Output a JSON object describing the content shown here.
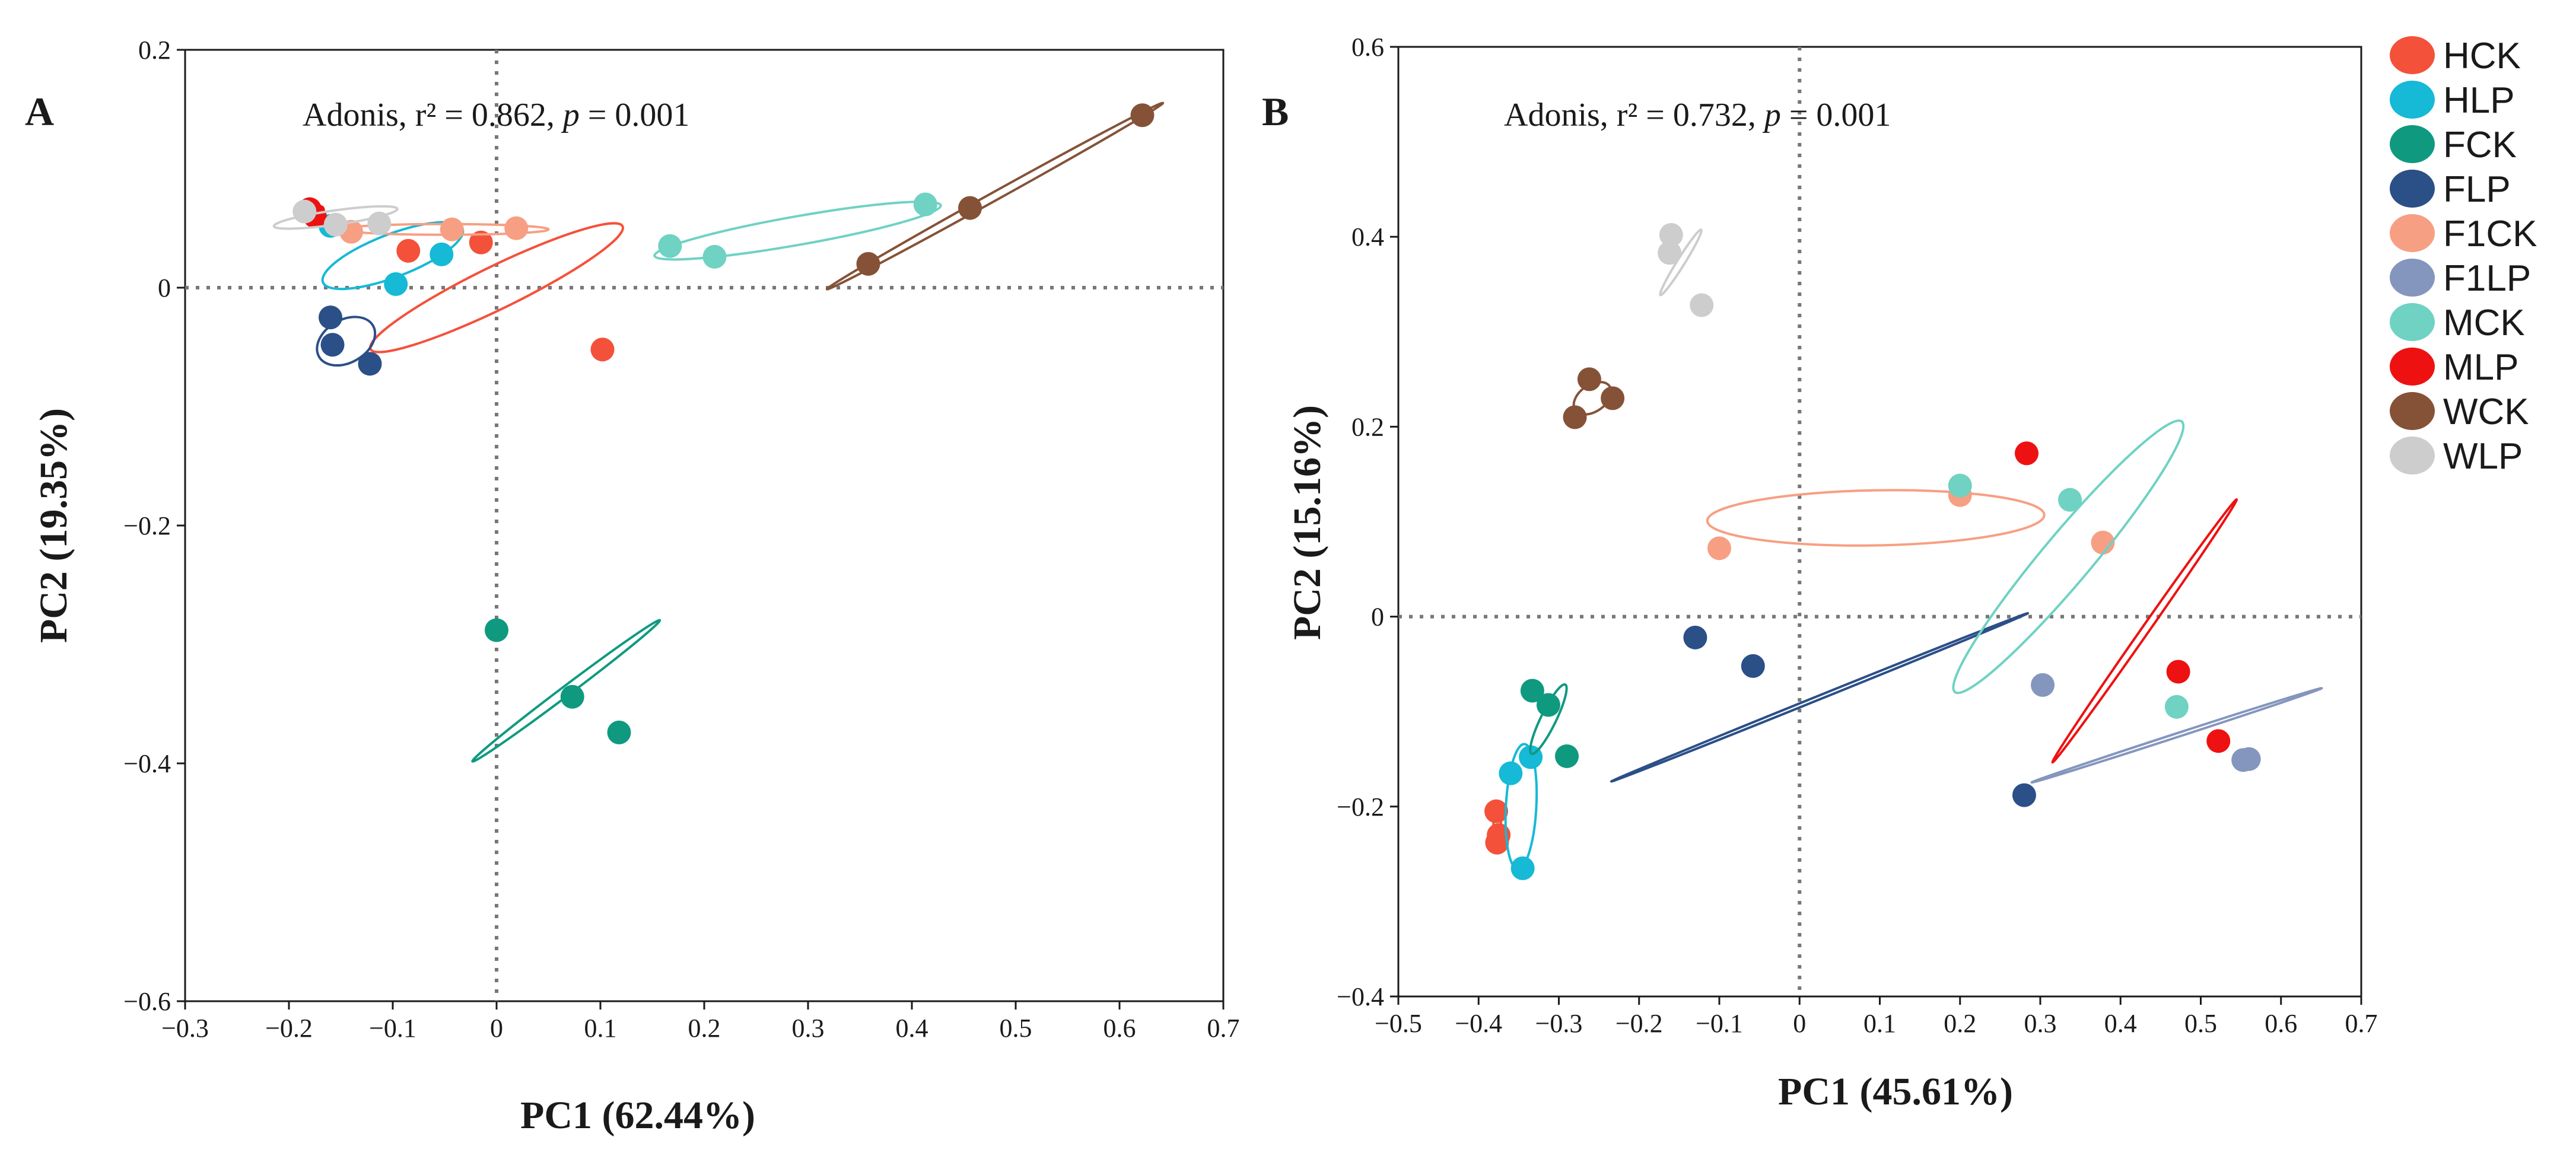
{
  "colors": {
    "HCK": "#f4513a",
    "HLP": "#16b9d6",
    "FCK": "#0f9a80",
    "FLP": "#2b4f87",
    "F1CK": "#f79f83",
    "F1LP": "#8496bd",
    "MCK": "#6fd2c3",
    "MLP": "#ee1111",
    "WCK": "#855238",
    "WLP": "#cdcdcd"
  },
  "legend": {
    "items": [
      "HCK",
      "HLP",
      "FCK",
      "FLP",
      "F1CK",
      "F1LP",
      "MCK",
      "MLP",
      "WCK",
      "WLP"
    ]
  },
  "chart_data": [
    {
      "type": "scatter",
      "panel": "A",
      "xlabel": "PC1 (62.44%)",
      "ylabel": "PC2 (19.35%)",
      "xlim": [
        -0.3,
        0.7
      ],
      "ylim": [
        -0.6,
        0.2
      ],
      "xticks": [
        -0.3,
        -0.2,
        -0.1,
        0,
        0.1,
        0.2,
        0.3,
        0.4,
        0.5,
        0.6,
        0.7
      ],
      "xtick_labels": [
        "−0.3",
        "−0.2",
        "−0.1",
        "0",
        "0.1",
        "0.2",
        "0.3",
        "0.4",
        "0.5",
        "0.6",
        "0.7"
      ],
      "yticks": [
        0.2,
        0,
        -0.2,
        -0.4,
        -0.6
      ],
      "ytick_labels": [
        "0.2",
        "0",
        "−0.2",
        "−0.4",
        "−0.6"
      ],
      "annotation": {
        "prefix": "Adonis, r² = 0.862, ",
        "p_label": "p",
        "suffix": " = 0.001"
      },
      "reference_lines": {
        "x": 0,
        "y": 0,
        "style": "dotted"
      },
      "series": [
        {
          "name": "HCK",
          "points": [
            [
              -0.085,
              0.031
            ],
            [
              -0.015,
              0.038
            ],
            [
              0.102,
              -0.052
            ]
          ],
          "ellipse": {
            "cx": 0.0,
            "cy": 0.0,
            "rx": 0.135,
            "ry": 0.018,
            "angle": -26
          }
        },
        {
          "name": "HLP",
          "points": [
            [
              -0.097,
              0.003
            ],
            [
              -0.053,
              0.028
            ],
            [
              -0.16,
              0.052
            ]
          ],
          "ellipse": {
            "cx": -0.1,
            "cy": 0.027,
            "rx": 0.072,
            "ry": 0.018,
            "angle": -21
          }
        },
        {
          "name": "FCK",
          "points": [
            [
              0.0,
              -0.288
            ],
            [
              0.073,
              -0.344
            ],
            [
              0.118,
              -0.374
            ]
          ],
          "ellipse": {
            "cx": 0.067,
            "cy": -0.339,
            "rx": 0.113,
            "ry": 0.004,
            "angle": -37
          }
        },
        {
          "name": "FLP",
          "points": [
            [
              -0.16,
              -0.025
            ],
            [
              -0.158,
              -0.048
            ],
            [
              -0.122,
              -0.064
            ]
          ],
          "ellipse": {
            "cx": -0.145,
            "cy": -0.045,
            "rx": 0.03,
            "ry": 0.018,
            "angle": -30
          }
        },
        {
          "name": "F1CK",
          "points": [
            [
              -0.14,
              0.047
            ],
            [
              -0.043,
              0.049
            ],
            [
              0.019,
              0.05
            ]
          ],
          "ellipse": {
            "cx": -0.05,
            "cy": 0.049,
            "rx": 0.1,
            "ry": 0.0045,
            "angle": 0
          }
        },
        {
          "name": "MCK",
          "points": [
            [
              0.167,
              0.035
            ],
            [
              0.21,
              0.026
            ],
            [
              0.413,
              0.07
            ]
          ],
          "ellipse": {
            "cx": 0.29,
            "cy": 0.048,
            "rx": 0.14,
            "ry": 0.012,
            "angle": -10
          }
        },
        {
          "name": "MLP",
          "points": [
            [
              -0.18,
              0.066
            ],
            [
              -0.175,
              0.06
            ]
          ],
          "ellipse": {
            "cx": -0.178,
            "cy": 0.063,
            "rx": 0.012,
            "ry": 0.005,
            "angle": -20
          }
        },
        {
          "name": "WCK",
          "points": [
            [
              0.358,
              0.02
            ],
            [
              0.456,
              0.067
            ],
            [
              0.622,
              0.145
            ]
          ],
          "ellipse": {
            "cx": 0.48,
            "cy": 0.077,
            "rx": 0.185,
            "ry": 0.0035,
            "angle": -29
          }
        },
        {
          "name": "WLP",
          "points": [
            [
              -0.185,
              0.064
            ],
            [
              -0.155,
              0.053
            ],
            [
              -0.113,
              0.054
            ]
          ],
          "ellipse": {
            "cx": -0.155,
            "cy": 0.059,
            "rx": 0.06,
            "ry": 0.006,
            "angle": -8
          }
        }
      ]
    },
    {
      "type": "scatter",
      "panel": "B",
      "xlabel": "PC1 (45.61%)",
      "ylabel": "PC2 (15.16%)",
      "xlim": [
        -0.5,
        0.7
      ],
      "ylim": [
        -0.4,
        0.6
      ],
      "xticks": [
        -0.5,
        -0.4,
        -0.3,
        -0.2,
        -0.1,
        0,
        0.1,
        0.2,
        0.3,
        0.4,
        0.5,
        0.6,
        0.7
      ],
      "xtick_labels": [
        "−0.5",
        "−0.4",
        "−0.3",
        "−0.2",
        "−0.1",
        "0",
        "0.1",
        "0.2",
        "0.3",
        "0.4",
        "0.5",
        "0.6",
        "0.7"
      ],
      "yticks": [
        0.6,
        0.4,
        0.2,
        0,
        -0.2,
        -0.4
      ],
      "ytick_labels": [
        "0.6",
        "0.4",
        "0.2",
        "0",
        "−0.2",
        "−0.4"
      ],
      "annotation": {
        "prefix": "Adonis, r² = 0.732, ",
        "p_label": "p",
        "suffix": " = 0.001"
      },
      "reference_lines": {
        "x": 0,
        "y": 0,
        "style": "dotted"
      },
      "series": [
        {
          "name": "HCK",
          "points": [
            [
              -0.378,
              -0.205
            ],
            [
              -0.375,
              -0.23
            ],
            [
              -0.377,
              -0.238
            ]
          ],
          "ellipse": {
            "cx": -0.377,
            "cy": -0.222,
            "rx": 0.022,
            "ry": 0.004,
            "angle": -88
          }
        },
        {
          "name": "HLP",
          "points": [
            [
              -0.36,
              -0.165
            ],
            [
              -0.335,
              -0.148
            ],
            [
              -0.345,
              -0.265
            ]
          ],
          "ellipse": {
            "cx": -0.347,
            "cy": -0.2,
            "rx": 0.078,
            "ry": 0.016,
            "angle": -87
          }
        },
        {
          "name": "FCK",
          "points": [
            [
              -0.333,
              -0.078
            ],
            [
              -0.313,
              -0.093
            ],
            [
              -0.29,
              -0.147
            ]
          ],
          "ellipse": {
            "cx": -0.313,
            "cy": -0.108,
            "rx": 0.048,
            "ry": 0.008,
            "angle": -64
          }
        },
        {
          "name": "FLP",
          "points": [
            [
              -0.13,
              -0.022
            ],
            [
              -0.058,
              -0.052
            ],
            [
              0.28,
              -0.188
            ]
          ],
          "ellipse": {
            "cx": 0.025,
            "cy": -0.085,
            "rx": 0.28,
            "ry": 0.002,
            "angle": -22
          }
        },
        {
          "name": "F1CK",
          "points": [
            [
              -0.1,
              0.072
            ],
            [
              0.2,
              0.128
            ],
            [
              0.378,
              0.078
            ]
          ],
          "ellipse": {
            "cx": 0.095,
            "cy": 0.104,
            "rx": 0.21,
            "ry": 0.029,
            "angle": -1
          }
        },
        {
          "name": "F1LP",
          "points": [
            [
              0.303,
              -0.072
            ],
            [
              0.553,
              -0.151
            ],
            [
              0.56,
              -0.15
            ]
          ],
          "ellipse": {
            "cx": 0.47,
            "cy": -0.125,
            "rx": 0.19,
            "ry": 0.002,
            "angle": -18
          }
        },
        {
          "name": "MCK",
          "points": [
            [
              0.2,
              0.138
            ],
            [
              0.337,
              0.123
            ],
            [
              0.47,
              -0.095
            ]
          ],
          "ellipse": {
            "cx": 0.335,
            "cy": 0.063,
            "rx": 0.22,
            "ry": 0.026,
            "angle": -50
          }
        },
        {
          "name": "MLP",
          "points": [
            [
              0.283,
              0.172
            ],
            [
              0.472,
              -0.058
            ],
            [
              0.522,
              -0.131
            ]
          ],
          "ellipse": {
            "cx": 0.43,
            "cy": -0.015,
            "rx": 0.2,
            "ry": 0.004,
            "angle": -55
          }
        },
        {
          "name": "WCK",
          "points": [
            [
              -0.28,
              0.21
            ],
            [
              -0.262,
              0.25
            ],
            [
              -0.233,
              0.23
            ]
          ],
          "ellipse": {
            "cx": -0.258,
            "cy": 0.23,
            "rx": 0.026,
            "ry": 0.014,
            "angle": -35
          }
        },
        {
          "name": "WLP",
          "points": [
            [
              -0.162,
              0.383
            ],
            [
              -0.16,
              0.402
            ],
            [
              -0.122,
              0.328
            ]
          ],
          "ellipse": {
            "cx": -0.148,
            "cy": 0.373,
            "rx": 0.048,
            "ry": 0.004,
            "angle": -58
          }
        }
      ]
    }
  ]
}
